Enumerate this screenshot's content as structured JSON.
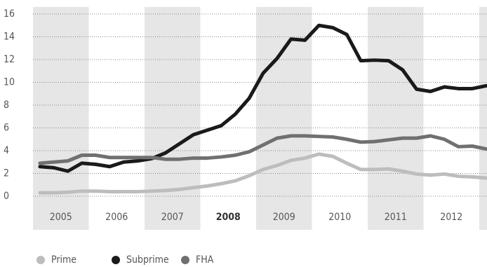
{
  "chart_data": {
    "type": "line",
    "years": [
      "2005",
      "2006",
      "2007",
      "2008",
      "2009",
      "2010",
      "2011",
      "2012"
    ],
    "highlight": "2008",
    "ylim": [
      0,
      16
    ],
    "yticks": [
      0,
      2,
      4,
      6,
      8,
      10,
      12,
      14,
      16
    ],
    "grid": true,
    "legend": "bottom-left",
    "series": [
      {
        "name": "Prime",
        "color": "#bdbdbd",
        "values": [
          0.3,
          0.3,
          0.35,
          0.45,
          0.45,
          0.4,
          0.4,
          0.4,
          0.45,
          0.5,
          0.6,
          0.75,
          0.9,
          1.1,
          1.35,
          1.8,
          2.35,
          2.7,
          3.15,
          3.35,
          3.7,
          3.5,
          2.9,
          2.35,
          2.35,
          2.4,
          2.2,
          1.95,
          1.85,
          1.95,
          1.75,
          1.7,
          1.6
        ]
      },
      {
        "name": "Subprime",
        "color": "#1a1a1a",
        "values": [
          2.6,
          2.5,
          2.2,
          2.9,
          2.8,
          2.6,
          3.0,
          3.1,
          3.3,
          3.8,
          4.6,
          5.4,
          5.8,
          6.2,
          7.2,
          8.6,
          10.8,
          12.1,
          13.8,
          13.7,
          15.0,
          14.8,
          14.2,
          11.9,
          11.95,
          11.9,
          11.1,
          9.4,
          9.2,
          9.6,
          9.45,
          9.45,
          9.7
        ]
      },
      {
        "name": "FHA",
        "color": "#707070",
        "values": [
          2.9,
          3.0,
          3.1,
          3.6,
          3.6,
          3.4,
          3.4,
          3.4,
          3.4,
          3.25,
          3.25,
          3.35,
          3.35,
          3.45,
          3.6,
          3.9,
          4.5,
          5.1,
          5.3,
          5.3,
          5.25,
          5.2,
          5.0,
          4.75,
          4.8,
          4.95,
          5.1,
          5.1,
          5.3,
          5.0,
          4.35,
          4.4,
          4.15
        ]
      }
    ]
  }
}
